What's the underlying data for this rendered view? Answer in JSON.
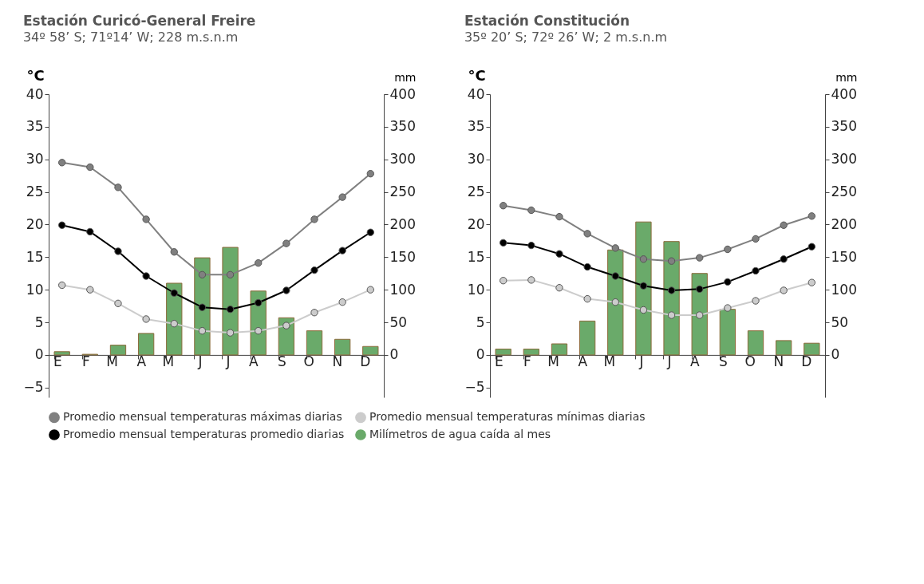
{
  "chart_data": [
    {
      "type": "line",
      "title": "Estación Curicó-General Freire",
      "subtitle": "34º 58’ S; 71º14’ W; 228 m.s.n.m",
      "ylabel": "°C",
      "y2label": "mm",
      "categories": [
        "E",
        "F",
        "M",
        "A",
        "M",
        "J",
        "J",
        "A",
        "S",
        "O",
        "N",
        "D"
      ],
      "ylim": [
        -6.5,
        40
      ],
      "yticks": [
        -5,
        0,
        5,
        10,
        15,
        20,
        25,
        30,
        35,
        40
      ],
      "y2lim": [
        -65,
        400
      ],
      "y2ticks": [
        0,
        50,
        100,
        150,
        200,
        250,
        300,
        350,
        400
      ],
      "marker": "circle",
      "legend": "bottom",
      "grid": false,
      "series": [
        {
          "name": "Promedio mensual temperaturas máximas diarias",
          "color": "#808080",
          "values": [
            29.5,
            28.8,
            25.7,
            20.8,
            15.8,
            12.3,
            12.3,
            14.1,
            17.1,
            20.8,
            24.2,
            27.8
          ]
        },
        {
          "name": "Promedio mensual temperaturas promedio diarias",
          "color": "#000000",
          "values": [
            19.9,
            18.9,
            15.9,
            12.1,
            9.5,
            7.3,
            7.0,
            8.0,
            9.9,
            13.0,
            16.0,
            18.8
          ]
        },
        {
          "name": "Promedio mensual temperaturas mínimas diarias",
          "color": "#cccccc",
          "values": [
            10.7,
            10.0,
            7.9,
            5.5,
            4.8,
            3.7,
            3.4,
            3.7,
            4.5,
            6.5,
            8.1,
            10.0
          ]
        },
        {
          "name": "Milímetros de agua caída al mes",
          "type": "bar",
          "axis": "y2",
          "color": "#6aaa6a",
          "values": [
            5,
            1,
            15,
            33,
            110,
            149,
            165,
            98,
            57,
            37,
            24,
            13
          ]
        }
      ]
    },
    {
      "type": "line",
      "title": "Estación Constitución",
      "subtitle": "35º 20’ S; 72º 26’ W; 2 m.s.n.m",
      "ylabel": "°C",
      "y2label": "mm",
      "categories": [
        "E",
        "F",
        "M",
        "A",
        "M",
        "J",
        "J",
        "A",
        "S",
        "O",
        "N",
        "D"
      ],
      "ylim": [
        -6.5,
        40
      ],
      "yticks": [
        -5,
        0,
        5,
        10,
        15,
        20,
        25,
        30,
        35,
        40
      ],
      "y2lim": [
        -65,
        400
      ],
      "y2ticks": [
        0,
        50,
        100,
        150,
        200,
        250,
        300,
        350,
        400
      ],
      "marker": "circle",
      "grid": false,
      "series": [
        {
          "color": "#808080",
          "values": [
            22.9,
            22.2,
            21.2,
            18.6,
            16.4,
            14.7,
            14.4,
            14.9,
            16.2,
            17.8,
            19.9,
            21.3
          ]
        },
        {
          "color": "#000000",
          "values": [
            17.2,
            16.8,
            15.5,
            13.5,
            12.1,
            10.6,
            9.9,
            10.1,
            11.2,
            12.9,
            14.7,
            16.6
          ]
        },
        {
          "color": "#cccccc",
          "values": [
            11.4,
            11.5,
            10.3,
            8.6,
            8.1,
            6.9,
            6.1,
            6.1,
            7.2,
            8.3,
            9.9,
            11.1
          ]
        },
        {
          "type": "bar",
          "axis": "y2",
          "color": "#6aaa6a",
          "values": [
            9,
            9,
            17,
            52,
            161,
            204,
            174,
            125,
            70,
            37,
            22,
            18
          ]
        }
      ]
    }
  ]
}
